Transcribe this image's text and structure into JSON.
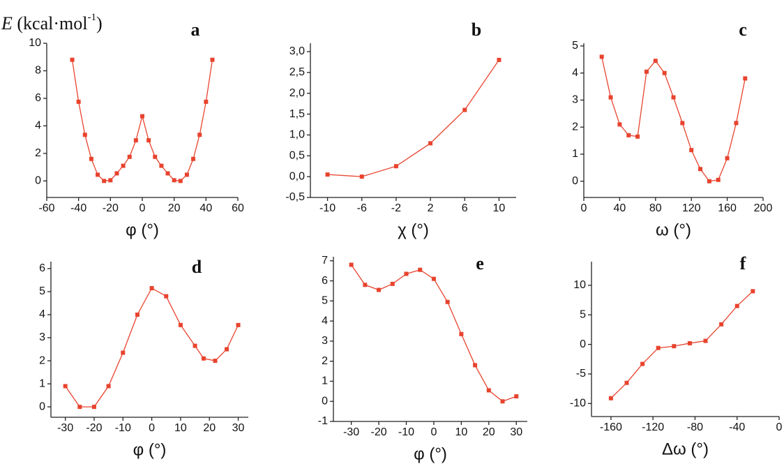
{
  "y_axis_label": {
    "symbol": "E",
    "unit": "(kcal·mol",
    "exponent": "-1",
    "close": ")"
  },
  "chart_data": [
    {
      "type": "line",
      "title": "a",
      "x_label": "φ (°)",
      "color": "#e8432e",
      "x": [
        -44,
        -40,
        -36,
        -32,
        -28,
        -24,
        -20,
        -16,
        -12,
        -8,
        -4,
        0,
        4,
        8,
        12,
        16,
        20,
        24,
        28,
        32,
        36,
        40,
        44
      ],
      "values": [
        8.8,
        5.75,
        3.35,
        1.6,
        0.45,
        0.0,
        0.05,
        0.55,
        1.1,
        1.75,
        2.95,
        4.7,
        2.95,
        1.75,
        1.1,
        0.55,
        0.05,
        0.0,
        0.45,
        1.6,
        3.35,
        5.75,
        8.8
      ],
      "xlim": [
        -60,
        60
      ],
      "ylim": [
        -1.2,
        10
      ],
      "xticks": [
        -60,
        -40,
        -20,
        0,
        20,
        40,
        60
      ],
      "yticks": [
        0,
        2,
        4,
        6,
        8,
        10
      ]
    },
    {
      "type": "line",
      "title": "b",
      "x_label": "χ (°)",
      "color": "#e8432e",
      "x": [
        -10,
        -6,
        -2,
        2,
        6,
        10
      ],
      "values": [
        0.05,
        0.0,
        0.25,
        0.8,
        1.6,
        2.8
      ],
      "xlim": [
        -12,
        12
      ],
      "ylim": [
        -0.5,
        3.2
      ],
      "xticks": [
        -10,
        -6,
        -2,
        2,
        6,
        10
      ],
      "yticks": [
        {
          "value": -0.5,
          "label": "-0,5"
        },
        {
          "value": 0,
          "label": "0,0"
        },
        {
          "value": 0.5,
          "label": "0,5"
        },
        {
          "value": 1,
          "label": "1,0"
        },
        {
          "value": 1.5,
          "label": "1,5"
        },
        {
          "value": 2,
          "label": "2,0"
        },
        {
          "value": 2.5,
          "label": "2,5"
        },
        {
          "value": 3,
          "label": "3,0"
        }
      ]
    },
    {
      "type": "line",
      "title": "c",
      "x_label": "ω (°)",
      "color": "#e8432e",
      "x": [
        20,
        30,
        40,
        50,
        60,
        70,
        80,
        90,
        100,
        110,
        120,
        130,
        140,
        150,
        160,
        170,
        180
      ],
      "values": [
        4.6,
        3.1,
        2.1,
        1.7,
        1.65,
        4.05,
        4.45,
        4.0,
        3.1,
        2.15,
        1.15,
        0.45,
        0.0,
        0.05,
        0.85,
        2.15,
        3.8
      ],
      "xlim": [
        0,
        200
      ],
      "ylim": [
        -0.6,
        5.1
      ],
      "xticks": [
        0,
        40,
        80,
        120,
        160,
        200
      ],
      "yticks": [
        0,
        1,
        2,
        3,
        4,
        5
      ]
    },
    {
      "type": "line",
      "title": "d",
      "x_label": "φ (°)",
      "color": "#e8432e",
      "x": [
        -30,
        -25,
        -20,
        -15,
        -10,
        -5,
        0,
        5,
        10,
        15,
        18,
        22,
        26,
        30
      ],
      "values": [
        0.9,
        0.0,
        0.0,
        0.9,
        2.35,
        4.0,
        5.15,
        4.8,
        3.55,
        2.65,
        2.1,
        2.0,
        2.5,
        3.55
      ],
      "xlim": [
        -35,
        33.5
      ],
      "ylim": [
        -0.45,
        6.3
      ],
      "xticks": [
        -30,
        -20,
        -10,
        0,
        10,
        20,
        30
      ],
      "yticks": [
        0,
        1,
        2,
        3,
        4,
        5,
        6
      ]
    },
    {
      "type": "line",
      "title": "e",
      "x_label": "φ (°)",
      "color": "#e8432e",
      "x": [
        -30,
        -25,
        -20,
        -15,
        -10,
        -5,
        0,
        5,
        10,
        15,
        20,
        25,
        30
      ],
      "values": [
        6.8,
        5.8,
        5.55,
        5.85,
        6.35,
        6.55,
        6.1,
        4.95,
        3.35,
        1.8,
        0.55,
        0.0,
        0.25
      ],
      "xlim": [
        -36.5,
        34
      ],
      "ylim": [
        -1,
        7.2
      ],
      "xticks": [
        -30,
        -20,
        -10,
        0,
        10,
        20,
        30
      ],
      "yticks": [
        -1,
        0,
        1,
        2,
        3,
        4,
        5,
        6,
        7
      ]
    },
    {
      "type": "line",
      "title": "f",
      "x_label": "Δω (°)",
      "color": "#e8432e",
      "x": [
        -160,
        -145,
        -130,
        -115,
        -100,
        -85,
        -70,
        -55,
        -40,
        -25
      ],
      "values": [
        -9.1,
        -6.5,
        -3.3,
        -0.6,
        -0.3,
        0.2,
        0.6,
        3.4,
        6.5,
        9.0
      ],
      "xlim": [
        -178.5,
        0
      ],
      "ylim": [
        -12.2,
        14
      ],
      "xticks": [
        -160,
        -120,
        -80,
        -40,
        0
      ],
      "yticks": [
        -10,
        -5,
        0,
        5,
        10
      ]
    }
  ]
}
